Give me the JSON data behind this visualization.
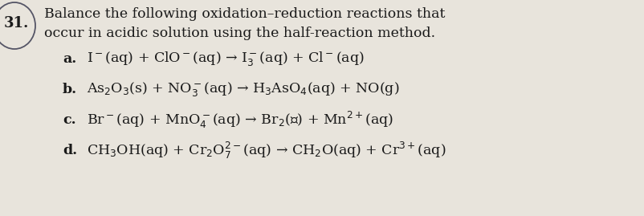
{
  "background_color": "#e8e4dc",
  "text_color": "#1a1a1a",
  "fig_width": 8.02,
  "fig_height": 2.69,
  "dpi": 100,
  "header_line1": "Balance the following oxidation–reduction reactions that",
  "header_line2": "occur in acidic solution using the half-reaction method.",
  "label_number": "31.",
  "line_a_label": "a.",
  "line_b_label": "b.",
  "line_c_label": "c.",
  "line_d_label": "d.",
  "line_a": "I$^-$(aq) + ClO$^-$(aq) → I$_3^-$(aq) + Cl$^-$(aq)",
  "line_b": "As$_2$O$_3$(s) + NO$_3^-$(aq) → H$_3$AsO$_4$(aq) + NO(g)",
  "line_c": "Br$^-$(aq) + MnO$_4^-$(aq) → Br$_2$(ℓ) + Mn$^{2+}$(aq)",
  "line_d": "CH$_3$OH(aq) + Cr$_2$O$_7^{2-}$(aq) → CH$_2$O(aq) + Cr$^{3+}$(aq)",
  "circle_color": "#555566",
  "header_fontsize": 12.5,
  "body_fontsize": 12.5
}
